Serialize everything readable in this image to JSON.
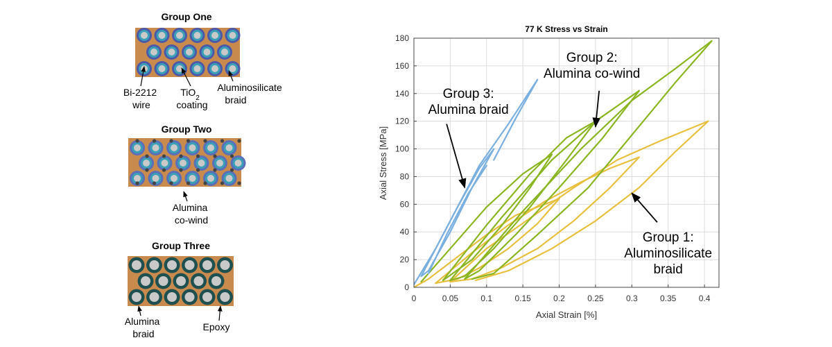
{
  "groups": [
    {
      "title": "Group One",
      "fill_color": "#4b59a8",
      "labels": [
        {
          "lines": [
            "Bi-2212",
            "wire"
          ]
        },
        {
          "lines": [
            "TiO",
            "coating"
          ],
          "subscript": "2"
        },
        {
          "lines": [
            "Aluminosilicate",
            "braid"
          ]
        }
      ]
    },
    {
      "title": "Group Two",
      "fill_color": "#5a6fb8",
      "labels": [
        {
          "lines": [
            "Alumina",
            "co-wind"
          ]
        }
      ]
    },
    {
      "title": "Group Three",
      "fill_color": "#1f5050",
      "labels": [
        {
          "lines": [
            "Alumina",
            "braid"
          ]
        },
        {
          "lines": [
            "Epoxy"
          ]
        }
      ]
    }
  ],
  "colors": {
    "matrix": "#c98a4e",
    "wire_core": "#c9c9c9",
    "tio2_ring": "#3aa0b8",
    "group1": "#e8c040",
    "group2": "#8ab520",
    "group3": "#7ab0e0"
  },
  "chart_data": {
    "type": "line",
    "title": "77 K Stress vs Strain",
    "xlabel": "Axial Strain [%]",
    "ylabel": "Axial Stress [MPa]",
    "xlim": [
      0,
      0.42
    ],
    "ylim": [
      0,
      180
    ],
    "xticks": [
      0,
      0.05,
      0.1,
      0.15,
      0.2,
      0.25,
      0.3,
      0.35,
      0.4
    ],
    "xtick_labels": [
      "0",
      "0.05",
      "0.1",
      "0.15",
      "0.2",
      "0.25",
      "0.3",
      "0.35",
      "0.4"
    ],
    "yticks": [
      0,
      20,
      40,
      60,
      80,
      100,
      120,
      140,
      160,
      180
    ],
    "ytick_labels": [
      "0",
      "20",
      "40",
      "60",
      "80",
      "100",
      "120",
      "140",
      "160",
      "180"
    ],
    "grid": true,
    "series": [
      {
        "color": "#e8c040",
        "lines": [
          [
            [
              0.0,
              0
            ],
            [
              0.02,
              6
            ],
            [
              0.06,
              22
            ],
            [
              0.1,
              38
            ],
            [
              0.14,
              52
            ],
            [
              0.18,
              60
            ],
            [
              0.2,
              64
            ]
          ],
          [
            [
              0.2,
              64
            ],
            [
              0.17,
              46
            ],
            [
              0.13,
              28
            ],
            [
              0.09,
              14
            ],
            [
              0.06,
              6
            ],
            [
              0.03,
              3
            ]
          ],
          [
            [
              0.03,
              3
            ],
            [
              0.08,
              25
            ],
            [
              0.13,
              45
            ],
            [
              0.18,
              62
            ],
            [
              0.23,
              76
            ],
            [
              0.27,
              86
            ],
            [
              0.31,
              94
            ]
          ],
          [
            [
              0.31,
              94
            ],
            [
              0.27,
              72
            ],
            [
              0.22,
              48
            ],
            [
              0.17,
              28
            ],
            [
              0.12,
              14
            ],
            [
              0.08,
              6
            ],
            [
              0.05,
              4
            ]
          ],
          [
            [
              0.05,
              4
            ],
            [
              0.1,
              28
            ],
            [
              0.16,
              50
            ],
            [
              0.22,
              72
            ],
            [
              0.28,
              92
            ],
            [
              0.34,
              106
            ],
            [
              0.405,
              120
            ]
          ],
          [
            [
              0.405,
              120
            ],
            [
              0.36,
              98
            ],
            [
              0.31,
              72
            ],
            [
              0.25,
              48
            ],
            [
              0.19,
              28
            ],
            [
              0.13,
              12
            ],
            [
              0.085,
              5
            ]
          ]
        ]
      },
      {
        "color": "#8ab520",
        "lines": [
          [
            [
              0.01,
              4
            ],
            [
              0.05,
              28
            ],
            [
              0.1,
              58
            ],
            [
              0.15,
              82
            ],
            [
              0.19,
              96
            ]
          ],
          [
            [
              0.19,
              96
            ],
            [
              0.16,
              72
            ],
            [
              0.12,
              44
            ],
            [
              0.08,
              20
            ],
            [
              0.04,
              5
            ]
          ],
          [
            [
              0.04,
              5
            ],
            [
              0.1,
              45
            ],
            [
              0.16,
              82
            ],
            [
              0.21,
              108
            ],
            [
              0.25,
              120
            ]
          ],
          [
            [
              0.25,
              120
            ],
            [
              0.21,
              92
            ],
            [
              0.16,
              58
            ],
            [
              0.11,
              28
            ],
            [
              0.07,
              8
            ],
            [
              0.05,
              5
            ]
          ],
          [
            [
              0.05,
              5
            ],
            [
              0.12,
              50
            ],
            [
              0.19,
              92
            ],
            [
              0.25,
              120
            ],
            [
              0.31,
              142
            ]
          ],
          [
            [
              0.31,
              142
            ],
            [
              0.26,
              108
            ],
            [
              0.2,
              72
            ],
            [
              0.14,
              38
            ],
            [
              0.09,
              12
            ],
            [
              0.07,
              6
            ]
          ],
          [
            [
              0.07,
              6
            ],
            [
              0.15,
              55
            ],
            [
              0.23,
              100
            ],
            [
              0.3,
              135
            ],
            [
              0.36,
              158
            ],
            [
              0.41,
              178
            ]
          ],
          [
            [
              0.41,
              178
            ],
            [
              0.36,
              148
            ],
            [
              0.3,
              110
            ],
            [
              0.24,
              72
            ],
            [
              0.17,
              38
            ],
            [
              0.11,
              10
            ],
            [
              0.08,
              6
            ]
          ]
        ]
      },
      {
        "color": "#7ab0e0",
        "lines": [
          [
            [
              0.0,
              2
            ],
            [
              0.03,
              28
            ],
            [
              0.06,
              58
            ],
            [
              0.09,
              86
            ],
            [
              0.11,
              100
            ]
          ],
          [
            [
              0.11,
              100
            ],
            [
              0.08,
              72
            ],
            [
              0.05,
              40
            ],
            [
              0.02,
              12
            ],
            [
              0.01,
              8
            ]
          ],
          [
            [
              0.01,
              8
            ],
            [
              0.05,
              48
            ],
            [
              0.09,
              88
            ],
            [
              0.13,
              118
            ],
            [
              0.17,
              150
            ]
          ],
          [
            [
              0.17,
              150
            ],
            [
              0.14,
              122
            ],
            [
              0.11,
              92
            ]
          ],
          [
            [
              0.02,
              10
            ],
            [
              0.045,
              38
            ],
            [
              0.075,
              68
            ],
            [
              0.1,
              88
            ]
          ]
        ]
      }
    ],
    "annotations": [
      {
        "lines": [
          "Group 3:",
          "Alumina braid"
        ],
        "x": 0.075,
        "y": 137,
        "arrow_to": [
          0.07,
          72
        ],
        "arrow_from": [
          0.045,
          118
        ]
      },
      {
        "lines": [
          "Group 2:",
          "Alumina co-wind"
        ],
        "x": 0.245,
        "y": 163,
        "arrow_to": [
          0.25,
          116
        ],
        "arrow_from": [
          0.255,
          142
        ]
      },
      {
        "lines": [
          "Group 1:",
          "Aluminosilicate",
          "braid"
        ],
        "x": 0.35,
        "y": 33,
        "arrow_to": [
          0.3,
          68
        ],
        "arrow_from": [
          0.335,
          47
        ]
      }
    ]
  }
}
